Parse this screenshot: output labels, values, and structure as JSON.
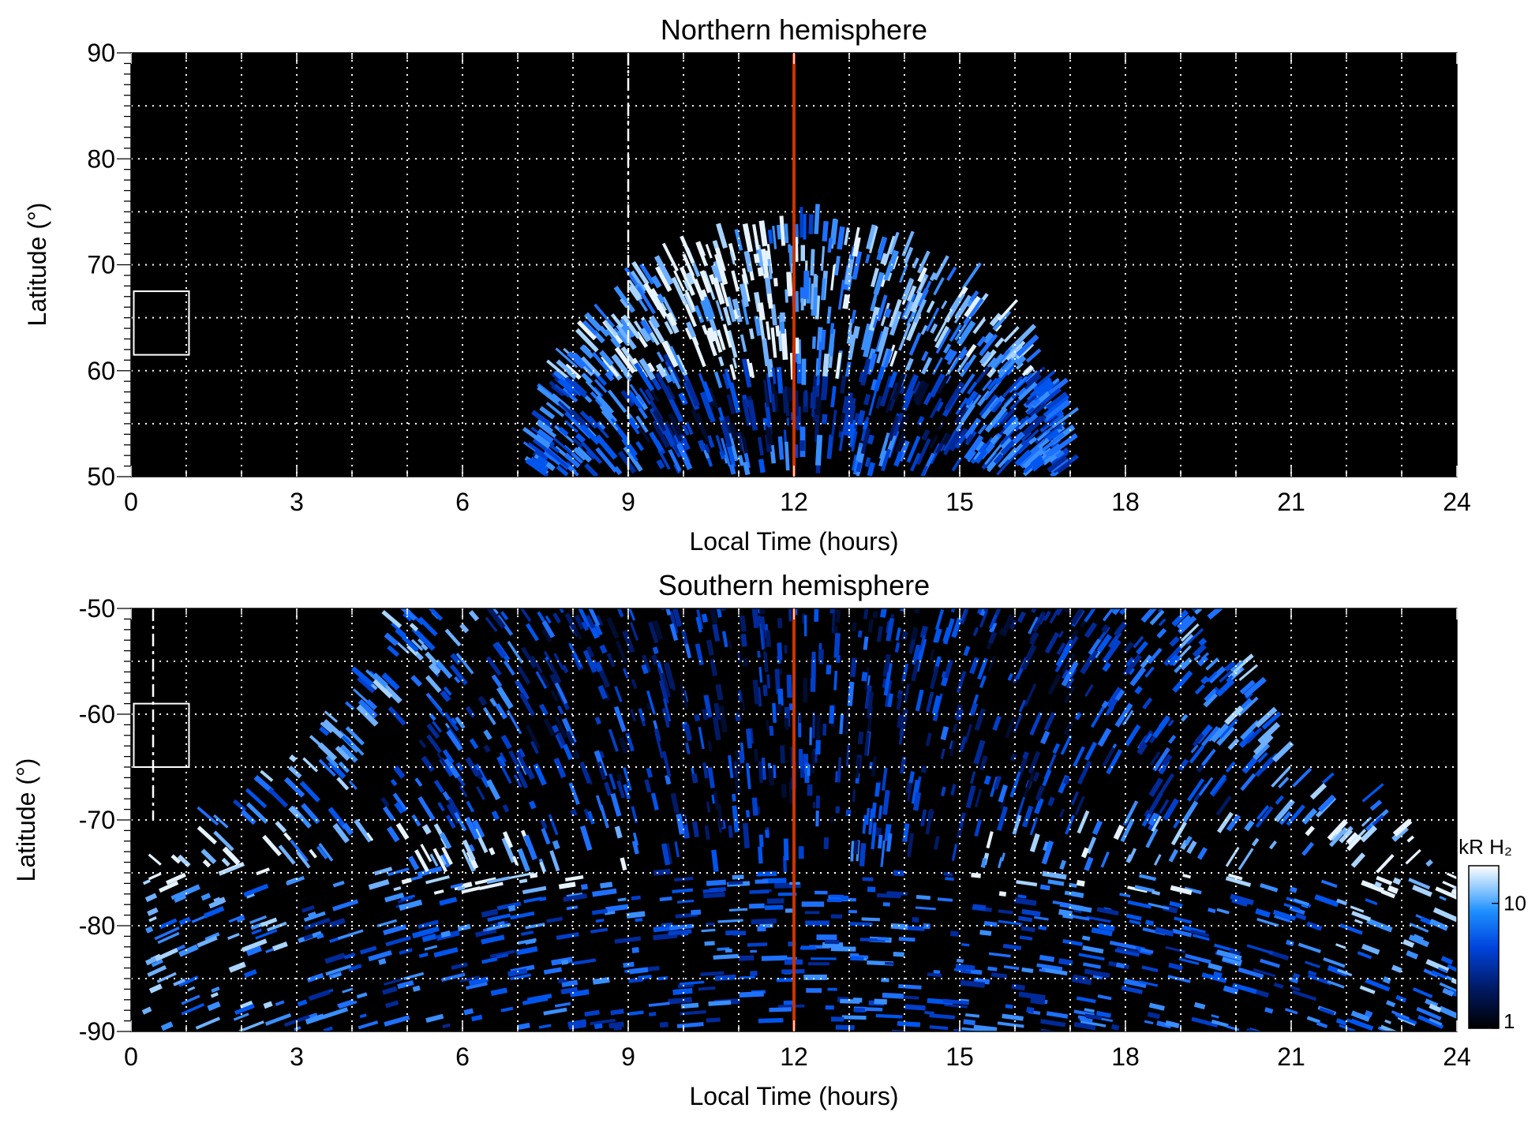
{
  "chart_data": [
    {
      "type": "heatmap",
      "title": "Northern hemisphere",
      "xlabel": "Local Time (hours)",
      "ylabel": "Latitude (°)",
      "xlim": [
        0,
        24
      ],
      "ylim": [
        50,
        90
      ],
      "xticks": [
        "0",
        "3",
        "6",
        "9",
        "12",
        "15",
        "18",
        "21",
        "24"
      ],
      "yticks": [
        "50",
        "60",
        "70",
        "80",
        "90"
      ],
      "grid": true,
      "vertical_markers": [
        {
          "x": 9,
          "style": "white-dashed",
          "y_range": [
            50,
            90
          ]
        },
        {
          "x": 12,
          "style": "red-solid",
          "color": "#cc3300"
        }
      ],
      "box": {
        "x_range": [
          0.05,
          1.05
        ],
        "y_range": [
          61.5,
          67.5
        ]
      },
      "emission_region": {
        "lt_range": [
          7.5,
          16.8
        ],
        "peak_latitude": 73,
        "bright_arc_lt": [
          9.5,
          13.5
        ],
        "bright_arc_latitude": [
          62,
          68
        ]
      }
    },
    {
      "type": "heatmap",
      "title": "Southern hemisphere",
      "xlabel": "Local Time (hours)",
      "ylabel": "Latitude (°)",
      "xlim": [
        0,
        24
      ],
      "ylim": [
        -90,
        -50
      ],
      "xticks": [
        "0",
        "3",
        "6",
        "9",
        "12",
        "15",
        "18",
        "21",
        "24"
      ],
      "yticks": [
        "-90",
        "-80",
        "-70",
        "-60",
        "-50"
      ],
      "grid": true,
      "vertical_markers": [
        {
          "x": 0.4,
          "style": "white-dashed",
          "y_range": [
            -70,
            -50
          ]
        },
        {
          "x": 12,
          "style": "red-solid",
          "color": "#cc3300"
        }
      ],
      "box": {
        "x_range": [
          0.05,
          1.05
        ],
        "y_range": [
          -65,
          -59
        ]
      },
      "emission_region": {
        "lt_range_at_top": [
          4.9,
          19.5
        ],
        "widens_to_full_lt_below": -75,
        "bright_oval_latitude": -74
      },
      "colorbar": {
        "label": "kR H₂",
        "ticks": [
          "1",
          "10"
        ],
        "range": [
          1,
          20
        ],
        "scale": "log",
        "colors": [
          "#000000",
          "#001a66",
          "#0044dd",
          "#1e90ff",
          "#9fd0ff",
          "#ffffff"
        ]
      }
    }
  ]
}
